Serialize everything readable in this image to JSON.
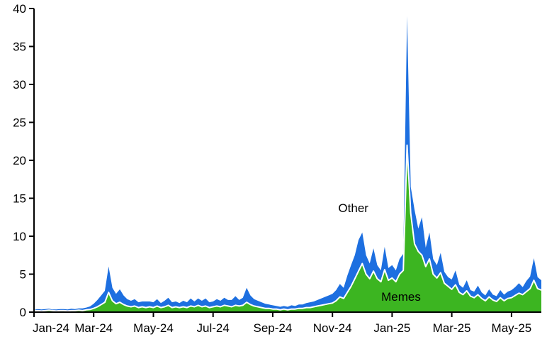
{
  "chart_data": {
    "type": "area",
    "stacked": true,
    "title": "",
    "x_axis": {
      "months_span": 17,
      "tick_labels": [
        "Jan-24",
        "Mar-24",
        "May-24",
        "Jul-24",
        "Sep-24",
        "Nov-24",
        "Jan-25",
        "Mar-25",
        "May-25"
      ],
      "tick_month_positions": [
        0,
        2,
        4,
        6,
        8,
        10,
        12,
        14,
        16
      ]
    },
    "y_axis": {
      "min": 0,
      "max": 40,
      "tick_step": 5,
      "tick_values": [
        0,
        5,
        10,
        15,
        20,
        25,
        30,
        35,
        40
      ],
      "tick_labels": [
        "0",
        "5",
        "10",
        "15",
        "20",
        "25",
        "30",
        "35",
        "40"
      ]
    },
    "series": [
      {
        "name": "Memes",
        "color": "#3CB521",
        "values": [
          0.15,
          0.2,
          0.15,
          0.2,
          0.25,
          0.2,
          0.15,
          0.2,
          0.2,
          0.15,
          0.2,
          0.2,
          0.25,
          0.2,
          0.3,
          0.35,
          0.5,
          0.7,
          1.0,
          1.3,
          2.6,
          1.5,
          1.1,
          1.3,
          1.0,
          0.8,
          0.7,
          0.8,
          0.6,
          0.7,
          0.6,
          0.7,
          0.6,
          0.8,
          0.6,
          0.7,
          0.9,
          0.6,
          0.7,
          0.6,
          0.7,
          0.6,
          0.8,
          0.7,
          0.9,
          0.7,
          0.8,
          0.6,
          0.7,
          0.8,
          0.7,
          0.9,
          0.8,
          0.7,
          0.9,
          0.8,
          0.9,
          1.3,
          1.0,
          0.8,
          0.7,
          0.6,
          0.5,
          0.5,
          0.4,
          0.4,
          0.3,
          0.4,
          0.3,
          0.4,
          0.4,
          0.5,
          0.5,
          0.6,
          0.6,
          0.7,
          0.8,
          0.9,
          1.0,
          1.1,
          1.2,
          1.5,
          2.0,
          1.8,
          2.6,
          3.4,
          4.4,
          5.4,
          6.4,
          5.0,
          4.4,
          5.4,
          4.4,
          4.0,
          5.6,
          4.2,
          4.5,
          4.0,
          5.0,
          5.5,
          22.0,
          13.0,
          9.0,
          8.0,
          7.5,
          6.0,
          7.0,
          5.0,
          4.5,
          5.2,
          3.8,
          3.4,
          3.0,
          3.6,
          2.6,
          2.3,
          2.8,
          2.1,
          1.9,
          2.3,
          1.8,
          1.5,
          2.0,
          1.6,
          1.4,
          1.9,
          1.5,
          1.8,
          1.9,
          2.2,
          2.5,
          2.3,
          2.7,
          3.1,
          4.2,
          3.1,
          2.9
        ]
      },
      {
        "name": "Other",
        "color": "#1D6FE0",
        "values": [
          0.15,
          0.2,
          0.2,
          0.2,
          0.2,
          0.15,
          0.2,
          0.2,
          0.2,
          0.2,
          0.25,
          0.2,
          0.25,
          0.3,
          0.3,
          0.4,
          0.6,
          0.9,
          1.2,
          1.5,
          3.4,
          1.7,
          1.3,
          1.7,
          1.2,
          0.9,
          0.8,
          0.9,
          0.7,
          0.7,
          0.8,
          0.7,
          0.7,
          0.9,
          0.6,
          0.8,
          1.0,
          0.7,
          0.7,
          0.6,
          0.8,
          0.7,
          1.0,
          0.7,
          0.9,
          0.8,
          1.0,
          0.7,
          0.7,
          0.9,
          0.8,
          1.0,
          0.8,
          0.9,
          1.2,
          0.8,
          1.0,
          1.9,
          1.2,
          0.9,
          0.8,
          0.7,
          0.6,
          0.5,
          0.5,
          0.4,
          0.4,
          0.4,
          0.4,
          0.5,
          0.4,
          0.5,
          0.5,
          0.6,
          0.7,
          0.7,
          0.8,
          0.9,
          1.0,
          1.1,
          1.2,
          1.4,
          1.7,
          1.4,
          2.2,
          2.8,
          3.1,
          4.1,
          4.1,
          2.5,
          2.0,
          3.0,
          1.8,
          1.5,
          3.0,
          1.6,
          1.7,
          1.5,
          2.0,
          2.2,
          17.0,
          3.5,
          4.5,
          3.0,
          5.0,
          2.5,
          3.5,
          2.0,
          1.7,
          2.6,
          1.5,
          1.2,
          1.3,
          1.9,
          1.0,
          0.9,
          1.4,
          0.8,
          0.8,
          1.2,
          0.8,
          0.7,
          1.0,
          0.7,
          0.7,
          1.0,
          0.8,
          0.9,
          1.0,
          1.1,
          1.3,
          1.0,
          1.4,
          1.6,
          2.9,
          1.5,
          1.3
        ]
      }
    ],
    "annotations": [
      {
        "label": "Other",
        "x_month": 10.7,
        "y_value": 13.2
      },
      {
        "label": "Memes",
        "x_month": 12.3,
        "y_value": 1.5
      }
    ],
    "separator_color": "#FFFFFF",
    "axis_color": "#000000",
    "text_color": "#000000",
    "background": "#FFFFFF"
  }
}
